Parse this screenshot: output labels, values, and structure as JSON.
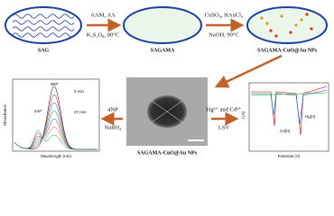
{
  "steps": [
    {
      "label": "SAG"
    },
    {
      "label": "SAGAMA"
    },
    {
      "label": "SAGAMA-CuO@Au NPs"
    }
  ],
  "arrows": [
    {
      "above": "AAM, AA",
      "below": "K₂S₂O₈, 80°C"
    },
    {
      "above": "CuSO₄, HAuCl₄",
      "below": "NaOH, 90°C"
    },
    {
      "above": "4NP",
      "below": "NaBH₄"
    },
    {
      "above": "Hg²⁺ and Cd²⁺",
      "below": "LSV"
    }
  ],
  "tem": {
    "caption": "SAGAMA-CuO@Au NPs"
  },
  "uv_panel": {
    "y_label": "Absorbance",
    "x_label": "Wavelength (nm)",
    "annotations": [
      "4NP",
      "0 min",
      "27 min",
      "4AP"
    ]
  },
  "lsv_panel": {
    "y_label": "I (A)",
    "x_label": "Potential (V)",
    "annotations": [
      "Cd(II)",
      "Hg(II)"
    ]
  }
}
